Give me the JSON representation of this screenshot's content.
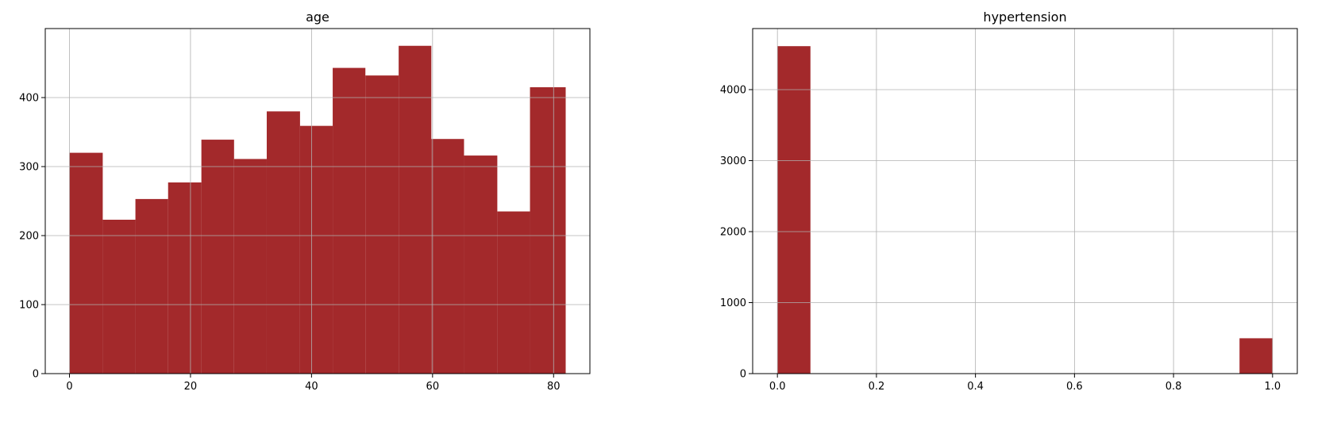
{
  "chart_data": [
    {
      "type": "bar",
      "title": "age",
      "color": "#a3292b",
      "xlim": [
        -4,
        86
      ],
      "ylim": [
        0,
        500
      ],
      "xticks": [
        0,
        20,
        40,
        60,
        80
      ],
      "xtick_labels": [
        "0",
        "20",
        "40",
        "60",
        "80"
      ],
      "yticks": [
        0,
        100,
        200,
        300,
        400
      ],
      "ytick_labels": [
        "0",
        "100",
        "200",
        "300",
        "400"
      ],
      "grid": true,
      "bins": [
        {
          "x0": 0.0,
          "x1": 5.5,
          "count": 320
        },
        {
          "x0": 5.5,
          "x1": 10.9,
          "count": 223
        },
        {
          "x0": 10.9,
          "x1": 16.3,
          "count": 253
        },
        {
          "x0": 16.3,
          "x1": 21.8,
          "count": 277
        },
        {
          "x0": 21.8,
          "x1": 27.2,
          "count": 339
        },
        {
          "x0": 27.2,
          "x1": 32.6,
          "count": 311
        },
        {
          "x0": 32.6,
          "x1": 38.1,
          "count": 380
        },
        {
          "x0": 38.1,
          "x1": 43.5,
          "count": 359
        },
        {
          "x0": 43.5,
          "x1": 48.9,
          "count": 443
        },
        {
          "x0": 48.9,
          "x1": 54.4,
          "count": 432
        },
        {
          "x0": 54.4,
          "x1": 59.8,
          "count": 475
        },
        {
          "x0": 59.8,
          "x1": 65.2,
          "count": 340
        },
        {
          "x0": 65.2,
          "x1": 70.7,
          "count": 316
        },
        {
          "x0": 70.7,
          "x1": 76.1,
          "count": 235
        },
        {
          "x0": 76.1,
          "x1": 82.0,
          "count": 415
        }
      ]
    },
    {
      "type": "bar",
      "title": "hypertension",
      "color": "#a3292b",
      "xlim": [
        -0.05,
        1.05
      ],
      "ylim": [
        0,
        4860
      ],
      "xticks": [
        0.0,
        0.2,
        0.4,
        0.6,
        0.8,
        1.0
      ],
      "xtick_labels": [
        "0.0",
        "0.2",
        "0.4",
        "0.6",
        "0.8",
        "1.0"
      ],
      "yticks": [
        0,
        1000,
        2000,
        3000,
        4000
      ],
      "ytick_labels": [
        "0",
        "1000",
        "2000",
        "3000",
        "4000"
      ],
      "grid": true,
      "bins": [
        {
          "x0": 0.0,
          "x1": 0.0667,
          "count": 4612
        },
        {
          "x0": 0.0667,
          "x1": 0.1333,
          "count": 0
        },
        {
          "x0": 0.1333,
          "x1": 0.2,
          "count": 0
        },
        {
          "x0": 0.2,
          "x1": 0.2667,
          "count": 0
        },
        {
          "x0": 0.2667,
          "x1": 0.3333,
          "count": 0
        },
        {
          "x0": 0.3333,
          "x1": 0.4,
          "count": 0
        },
        {
          "x0": 0.4,
          "x1": 0.4667,
          "count": 0
        },
        {
          "x0": 0.4667,
          "x1": 0.5333,
          "count": 0
        },
        {
          "x0": 0.5333,
          "x1": 0.6,
          "count": 0
        },
        {
          "x0": 0.6,
          "x1": 0.6667,
          "count": 0
        },
        {
          "x0": 0.6667,
          "x1": 0.7333,
          "count": 0
        },
        {
          "x0": 0.7333,
          "x1": 0.8,
          "count": 0
        },
        {
          "x0": 0.8,
          "x1": 0.8667,
          "count": 0
        },
        {
          "x0": 0.8667,
          "x1": 0.9333,
          "count": 0
        },
        {
          "x0": 0.9333,
          "x1": 1.0,
          "count": 498
        }
      ]
    }
  ]
}
